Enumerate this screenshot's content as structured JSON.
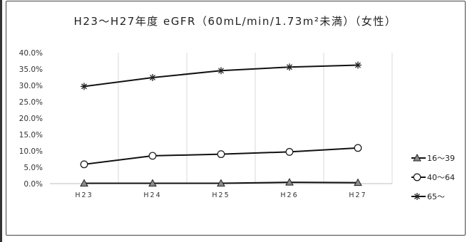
{
  "chart_data": {
    "type": "line",
    "title": "H23～H27年度 eGFR（60mL/min/1.73m²未満）（女性）",
    "categories": [
      "H23",
      "H24",
      "H25",
      "H26",
      "H27"
    ],
    "yticks": [
      "0.0%",
      "5.0%",
      "10.0%",
      "15.0%",
      "20.0%",
      "25.0%",
      "30.0%",
      "35.0%",
      "40.0%"
    ],
    "ylim": [
      0,
      40
    ],
    "grid": "vertical",
    "legend_position": "right",
    "series": [
      {
        "name": "16～39",
        "marker": "triangle",
        "values": [
          0.1,
          0.1,
          0.1,
          0.4,
          0.3
        ]
      },
      {
        "name": "40～64",
        "marker": "circle",
        "values": [
          5.9,
          8.5,
          9.0,
          9.7,
          10.9
        ]
      },
      {
        "name": "65～",
        "marker": "asterisk",
        "values": [
          29.7,
          32.4,
          34.5,
          35.6,
          36.2
        ]
      }
    ]
  }
}
